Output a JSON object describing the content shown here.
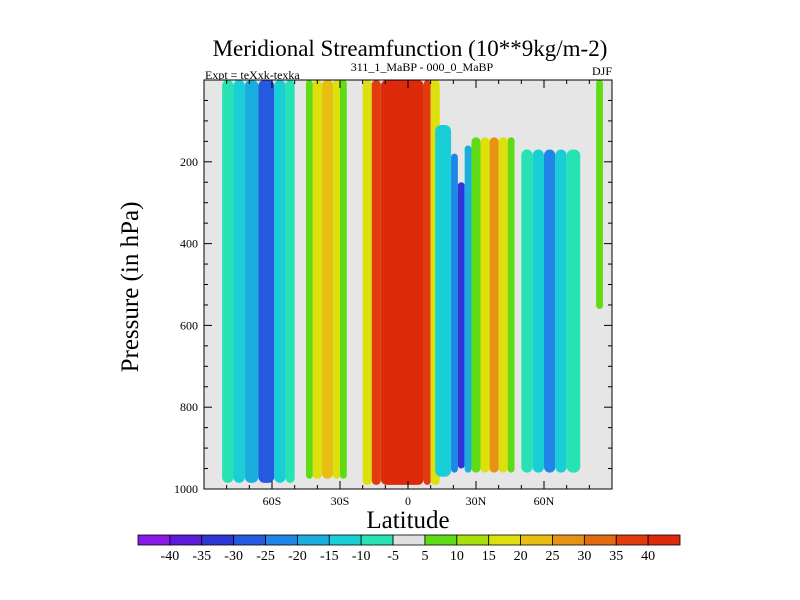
{
  "chart_data": {
    "type": "heatmap",
    "title": "Meridional Streamfunction (10**9kg/m-2)",
    "left_label": "Expt = teXxk-texka",
    "center_label": "311_1_MaBP - 000_0_MaBP",
    "right_label": "DJF",
    "xlabel": "Latitude",
    "ylabel": "Pressure (in hPa)",
    "xlim": [
      -90,
      90
    ],
    "ylim": [
      1000,
      0
    ],
    "x_ticks": [
      {
        "value": -60,
        "label": "60S"
      },
      {
        "value": -30,
        "label": "30S"
      },
      {
        "value": 0,
        "label": "0"
      },
      {
        "value": 30,
        "label": "30N"
      },
      {
        "value": 60,
        "label": "60N"
      }
    ],
    "y_ticks": [
      {
        "value": 200,
        "label": "200"
      },
      {
        "value": 400,
        "label": "400"
      },
      {
        "value": 600,
        "label": "600"
      },
      {
        "value": 800,
        "label": "800"
      },
      {
        "value": 1000,
        "label": "1000"
      }
    ],
    "contour_levels": [
      -40,
      -35,
      -30,
      -25,
      -20,
      -15,
      -10,
      -5,
      5,
      10,
      15,
      20,
      25,
      30,
      35,
      40
    ],
    "colorbar_labels": [
      "-40",
      "-35",
      "-30",
      "-25",
      "-20",
      "-15",
      "-10",
      "-5",
      "5",
      "10",
      "15",
      "20",
      "25",
      "30",
      "35",
      "40"
    ],
    "colorbar_colors": [
      "#8a1ae6",
      "#5e1ad8",
      "#2f36d6",
      "#2459e0",
      "#1f86e8",
      "#19aede",
      "#19cfd6",
      "#27e3b4",
      "#e0e0e0",
      "#5fdc16",
      "#a8e00c",
      "#dde00a",
      "#e8be12",
      "#e69212",
      "#e26a10",
      "#e03c0e",
      "#dc2a0a"
    ],
    "background_color": "#e6e6e6",
    "cells": [
      {
        "x": [
          -82,
          -77
        ],
        "y": [
          0,
          985
        ],
        "v": -10
      },
      {
        "x": [
          -77,
          -72
        ],
        "y": [
          0,
          985
        ],
        "v": -15
      },
      {
        "x": [
          -72,
          -66
        ],
        "y": [
          0,
          985
        ],
        "v": -20
      },
      {
        "x": [
          -66,
          -59
        ],
        "y": [
          0,
          985
        ],
        "v": -28
      },
      {
        "x": [
          -59,
          -54
        ],
        "y": [
          0,
          985
        ],
        "v": -15
      },
      {
        "x": [
          -54,
          -50
        ],
        "y": [
          0,
          985
        ],
        "v": -10
      },
      {
        "x": [
          -45,
          -42
        ],
        "y": [
          0,
          975
        ],
        "v": 8
      },
      {
        "x": [
          -42,
          -38
        ],
        "y": [
          0,
          975
        ],
        "v": 15
      },
      {
        "x": [
          -38,
          -33
        ],
        "y": [
          0,
          975
        ],
        "v": 22
      },
      {
        "x": [
          -33,
          -30
        ],
        "y": [
          0,
          975
        ],
        "v": 15
      },
      {
        "x": [
          -30,
          -27
        ],
        "y": [
          0,
          975
        ],
        "v": 8
      },
      {
        "x": [
          -20,
          -16
        ],
        "y": [
          0,
          990
        ],
        "v": 15
      },
      {
        "x": [
          -16,
          -12
        ],
        "y": [
          0,
          990
        ],
        "v": 35
      },
      {
        "x": [
          -12,
          7
        ],
        "y": [
          0,
          990
        ],
        "v": 45
      },
      {
        "x": [
          7,
          10
        ],
        "y": [
          0,
          990
        ],
        "v": 35
      },
      {
        "x": [
          10,
          14
        ],
        "y": [
          0,
          990
        ],
        "v": 15
      },
      {
        "x": [
          12,
          19
        ],
        "y": [
          110,
          970
        ],
        "v": -15
      },
      {
        "x": [
          19,
          22
        ],
        "y": [
          180,
          960
        ],
        "v": -25
      },
      {
        "x": [
          22,
          25
        ],
        "y": [
          250,
          950
        ],
        "v": -35
      },
      {
        "x": [
          25,
          28
        ],
        "y": [
          160,
          960
        ],
        "v": -20
      },
      {
        "x": [
          28,
          32
        ],
        "y": [
          140,
          960
        ],
        "v": 8
      },
      {
        "x": [
          32,
          36
        ],
        "y": [
          140,
          960
        ],
        "v": 15
      },
      {
        "x": [
          36,
          40
        ],
        "y": [
          140,
          960
        ],
        "v": 28
      },
      {
        "x": [
          40,
          44
        ],
        "y": [
          140,
          960
        ],
        "v": 15
      },
      {
        "x": [
          44,
          47
        ],
        "y": [
          140,
          960
        ],
        "v": 8
      },
      {
        "x": [
          50,
          55
        ],
        "y": [
          170,
          960
        ],
        "v": -10
      },
      {
        "x": [
          55,
          60
        ],
        "y": [
          170,
          960
        ],
        "v": -15
      },
      {
        "x": [
          60,
          65
        ],
        "y": [
          170,
          960
        ],
        "v": -22
      },
      {
        "x": [
          65,
          70
        ],
        "y": [
          170,
          960
        ],
        "v": -15
      },
      {
        "x": [
          70,
          76
        ],
        "y": [
          170,
          960
        ],
        "v": -10
      },
      {
        "x": [
          83,
          86
        ],
        "y": [
          0,
          560
        ],
        "v": 8
      }
    ]
  }
}
